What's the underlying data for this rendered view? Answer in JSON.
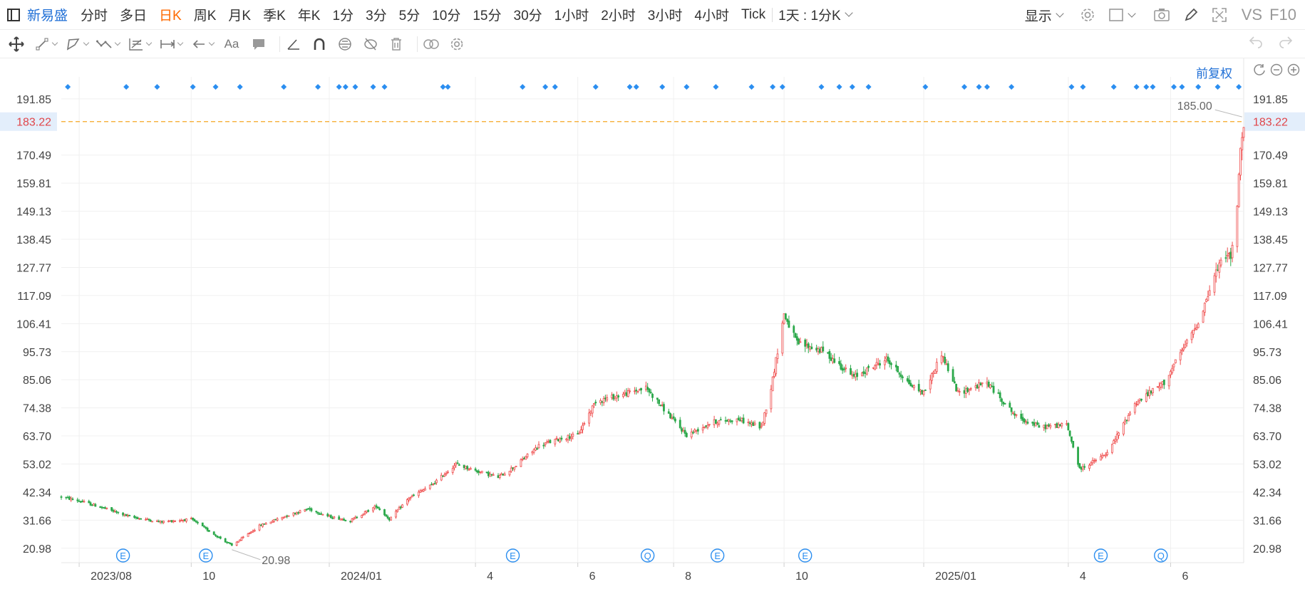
{
  "toolbar": {
    "stock_name": "新易盛",
    "periods": [
      "分时",
      "多日",
      "日K",
      "周K",
      "月K",
      "季K",
      "年K",
      "1分",
      "3分",
      "5分",
      "10分",
      "15分",
      "30分",
      "1小时",
      "2小时",
      "3小时",
      "4小时",
      "Tick"
    ],
    "active_period": "日K",
    "multi_period": "1天 : 1分K",
    "display_label": "显示",
    "vs_label": "VS",
    "f10_label": "F10",
    "icons": [
      "settings-icon",
      "layout-icon",
      "camera-icon",
      "pen-icon",
      "fullscreen-icon"
    ]
  },
  "draw_toolbar": {
    "tools": [
      "move-icon",
      "line-icon",
      "polygon-icon",
      "wave-icon",
      "fib-icon",
      "measure-icon",
      "arrow-icon",
      "text-icon",
      "comment-icon",
      "ruler-icon",
      "magnet-icon",
      "lock-icon",
      "hide-icon",
      "trash-icon",
      "link-icon",
      "gear-icon"
    ],
    "text_tool_label": "Aa",
    "undo_icon": "undo-icon",
    "redo_icon": "redo-icon"
  },
  "adjust": {
    "label": "前复权",
    "icons": [
      "reset-icon",
      "zoom-out-icon",
      "zoom-in-icon"
    ]
  },
  "colors": {
    "up": "#ef4c4c",
    "down": "#2ba84a",
    "accent": "#1f6fd6",
    "crosshair": "#f5a623",
    "event_marker": "#2b8ef0"
  },
  "chart_data": {
    "type": "candlestick",
    "ylim": [
      15.5,
      197.5
    ],
    "y_ticks": [
      "191.85",
      "170.49",
      "159.81",
      "149.13",
      "138.45",
      "127.77",
      "117.09",
      "106.41",
      "95.73",
      "85.06",
      "74.38",
      "63.70",
      "53.02",
      "42.34",
      "31.66",
      "20.98"
    ],
    "x_range": [
      "2023-07-21",
      "2025-07-18"
    ],
    "x_ticks": [
      {
        "label": "2023/08",
        "date": "2023-08-01"
      },
      {
        "label": "10",
        "date": "2023-10-09"
      },
      {
        "label": "2024/01",
        "date": "2024-01-02"
      },
      {
        "label": "4",
        "date": "2024-04-01"
      },
      {
        "label": "6",
        "date": "2024-06-03"
      },
      {
        "label": "8",
        "date": "2024-08-01"
      },
      {
        "label": "10",
        "date": "2024-10-08"
      },
      {
        "label": "2025/01",
        "date": "2025-01-02"
      },
      {
        "label": "4",
        "date": "2025-04-01"
      },
      {
        "label": "6",
        "date": "2025-06-03"
      }
    ],
    "current_price": "183.22",
    "max_label": "185.00",
    "min_label": "20.98",
    "min_date": "2023-11-03",
    "min_price": 20.98,
    "max_date": "2025-07-17",
    "max_price": 185.0,
    "price_path": [
      [
        "2023-07-21",
        40.5
      ],
      [
        "2023-08-01",
        39.0
      ],
      [
        "2023-08-15",
        36.5
      ],
      [
        "2023-09-01",
        33.0
      ],
      [
        "2023-09-20",
        31.0
      ],
      [
        "2023-10-09",
        32.0
      ],
      [
        "2023-10-20",
        27.5
      ],
      [
        "2023-11-03",
        22.0
      ],
      [
        "2023-11-20",
        29.5
      ],
      [
        "2023-12-05",
        33.0
      ],
      [
        "2023-12-20",
        36.0
      ],
      [
        "2024-01-02",
        33.0
      ],
      [
        "2024-01-15",
        31.5
      ],
      [
        "2024-01-31",
        37.0
      ],
      [
        "2024-02-08",
        32.0
      ],
      [
        "2024-02-20",
        40.0
      ],
      [
        "2024-03-05",
        45.0
      ],
      [
        "2024-03-20",
        53.0
      ],
      [
        "2024-04-01",
        50.5
      ],
      [
        "2024-04-15",
        48.0
      ],
      [
        "2024-04-25",
        52.0
      ],
      [
        "2024-05-10",
        60.0
      ],
      [
        "2024-05-25",
        63.0
      ],
      [
        "2024-06-03",
        64.0
      ],
      [
        "2024-06-14",
        77.0
      ],
      [
        "2024-06-28",
        79.0
      ],
      [
        "2024-07-15",
        82.0
      ],
      [
        "2024-07-30",
        71.0
      ],
      [
        "2024-08-09",
        64.0
      ],
      [
        "2024-08-25",
        69.0
      ],
      [
        "2024-09-10",
        70.0
      ],
      [
        "2024-09-24",
        67.0
      ],
      [
        "2024-09-30",
        82.0
      ],
      [
        "2024-10-08",
        110.0
      ],
      [
        "2024-10-16",
        99.0
      ],
      [
        "2024-11-01",
        96.0
      ],
      [
        "2024-11-20",
        86.0
      ],
      [
        "2024-12-10",
        93.0
      ],
      [
        "2024-12-25",
        83.0
      ],
      [
        "2025-01-02",
        80.0
      ],
      [
        "2025-01-13",
        95.0
      ],
      [
        "2025-01-23",
        80.0
      ],
      [
        "2025-02-10",
        84.0
      ],
      [
        "2025-02-28",
        71.0
      ],
      [
        "2025-03-15",
        67.0
      ],
      [
        "2025-03-31",
        68.0
      ],
      [
        "2025-04-08",
        51.0
      ],
      [
        "2025-04-25",
        57.0
      ],
      [
        "2025-05-12",
        76.0
      ],
      [
        "2025-05-30",
        84.0
      ],
      [
        "2025-06-10",
        96.0
      ],
      [
        "2025-06-20",
        107.0
      ],
      [
        "2025-07-01",
        126.0
      ],
      [
        "2025-07-08",
        134.0
      ],
      [
        "2025-07-10",
        130.0
      ],
      [
        "2025-07-14",
        152.0
      ],
      [
        "2025-07-16",
        172.0
      ],
      [
        "2025-07-18",
        183.22
      ]
    ],
    "event_markers": [
      {
        "label": "E",
        "date": "2023-08-28"
      },
      {
        "label": "E",
        "date": "2023-10-18"
      },
      {
        "label": "E",
        "date": "2024-04-24"
      },
      {
        "label": "Q",
        "date": "2024-07-16"
      },
      {
        "label": "E",
        "date": "2024-08-28"
      },
      {
        "label": "E",
        "date": "2024-10-21"
      },
      {
        "label": "E",
        "date": "2025-04-21"
      },
      {
        "label": "Q",
        "date": "2025-05-28"
      }
    ],
    "top_marker_dates": [
      "2023-07-25",
      "2023-08-30",
      "2023-09-18",
      "2023-10-10",
      "2023-10-24",
      "2023-11-08",
      "2023-12-05",
      "2023-12-26",
      "2024-01-08",
      "2024-01-12",
      "2024-01-18",
      "2024-01-29",
      "2024-02-05",
      "2024-03-12",
      "2024-03-15",
      "2024-04-30",
      "2024-05-14",
      "2024-05-20",
      "2024-06-14",
      "2024-07-05",
      "2024-07-09",
      "2024-07-25",
      "2024-08-09",
      "2024-08-27",
      "2024-09-18",
      "2024-10-01",
      "2024-10-07",
      "2024-10-31",
      "2024-11-11",
      "2024-11-19",
      "2024-11-29",
      "2025-01-03",
      "2025-01-27",
      "2025-02-05",
      "2025-02-10",
      "2025-02-25",
      "2025-04-03",
      "2025-04-10",
      "2025-04-29",
      "2025-05-13",
      "2025-05-19",
      "2025-05-23",
      "2025-06-05",
      "2025-06-10",
      "2025-06-20",
      "2025-07-02",
      "2025-07-15"
    ]
  }
}
